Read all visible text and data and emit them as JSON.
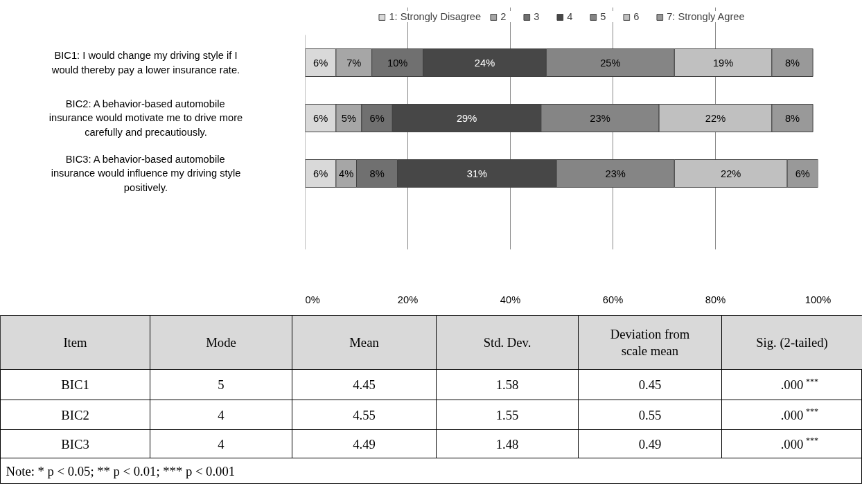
{
  "chart_data": {
    "type": "bar",
    "orientation": "horizontal",
    "stacked": true,
    "legend": "top",
    "grid": "x",
    "categories": [
      "BIC1: I would change my driving style if I would thereby pay a lower insurance rate.",
      "BIC2: A behavior-based automobile insurance would motivate me to drive more carefully and precautiously.",
      "BIC3: A behavior-based automobile insurance would influence my driving style positively."
    ],
    "xlim": [
      0,
      100
    ],
    "xticks": [
      {
        "value": 0,
        "label": "0%"
      },
      {
        "value": 20,
        "label": "20%"
      },
      {
        "value": 40,
        "label": "40%"
      },
      {
        "value": 60,
        "label": "60%"
      },
      {
        "value": 80,
        "label": "80%"
      },
      {
        "value": 100,
        "label": "100%"
      }
    ],
    "series": [
      {
        "name": "1: Strongly Disagree",
        "color": "#d9d9d9",
        "values": [
          6,
          6,
          6
        ],
        "value_labels": [
          "6%",
          "6%",
          "6%"
        ]
      },
      {
        "name": "2",
        "color": "#a6a6a6",
        "values": [
          7,
          5,
          4
        ],
        "value_labels": [
          "7%",
          "5%",
          "4%"
        ]
      },
      {
        "name": "3",
        "color": "#707070",
        "values": [
          10,
          6,
          8
        ],
        "value_labels": [
          "10%",
          "6%",
          "8%"
        ]
      },
      {
        "name": "4",
        "color": "#474747",
        "values": [
          24,
          29,
          31
        ],
        "value_labels": [
          "24%",
          "29%",
          "31%"
        ]
      },
      {
        "name": "5",
        "color": "#858585",
        "values": [
          25,
          23,
          23
        ],
        "value_labels": [
          "25%",
          "23%",
          "23%"
        ]
      },
      {
        "name": "6",
        "color": "#c0c0c0",
        "values": [
          19,
          22,
          22
        ],
        "value_labels": [
          "19%",
          "22%",
          "22%"
        ]
      },
      {
        "name": "7: Strongly Agree",
        "color": "#999999",
        "values": [
          8,
          8,
          6
        ],
        "value_labels": [
          "8%",
          "8%",
          "6%"
        ]
      }
    ],
    "annotations": [
      "Item",
      "Mode",
      "Mean",
      "Std. Dev.",
      "Deviation from scale mean",
      "Sig. (2-tailed)",
      "BIC1",
      "5",
      "4.45",
      "1.58",
      "0.45",
      ".000$^{***}$",
      "BIC2",
      "4",
      "4.55",
      "1.55",
      "0.55",
      ".000$^{***}$",
      "BIC3",
      "4",
      "4.49",
      "1.48",
      "0.49",
      ".000$^{***}$",
      "Note: * p < 0.05; ** p < 0.01; *** p < 0.001"
    ]
  }
}
